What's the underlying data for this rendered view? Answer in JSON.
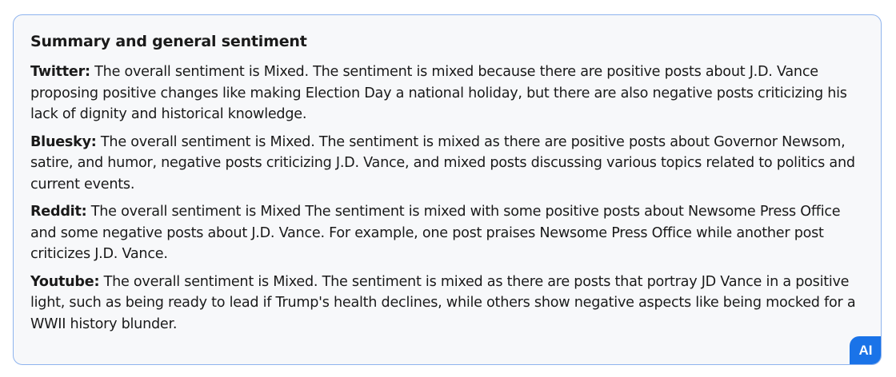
{
  "card": {
    "title": "Summary and general sentiment",
    "items": [
      {
        "platform": "Twitter:",
        "text": " The overall sentiment is Mixed. The sentiment is mixed because there are positive posts about J.D. Vance proposing positive changes like making Election Day a national holiday, but there are also negative posts criticizing his lack of dignity and historical knowledge."
      },
      {
        "platform": "Bluesky:",
        "text": " The overall sentiment is Mixed. The sentiment is mixed as there are positive posts about Governor Newsom, satire, and humor, negative posts criticizing J.D. Vance, and mixed posts discussing various topics related to politics and current events."
      },
      {
        "platform": "Reddit:",
        "text": " The overall sentiment is Mixed The sentiment is mixed with some positive posts about Newsome Press Office and some negative posts about J.D. Vance. For example, one post praises Newsome Press Office while another post criticizes J.D. Vance."
      },
      {
        "platform": "Youtube:",
        "text": " The overall sentiment is Mixed. The sentiment is mixed as there are posts that portray JD Vance in a positive light, such as being ready to lead if Trump's health declines, while others show negative aspects like being mocked for a WWII history blunder."
      }
    ],
    "badge": "AI"
  },
  "colors": {
    "accent": "#1a73e8",
    "border": "#8fb4ee",
    "background": "#f7f8fa"
  }
}
